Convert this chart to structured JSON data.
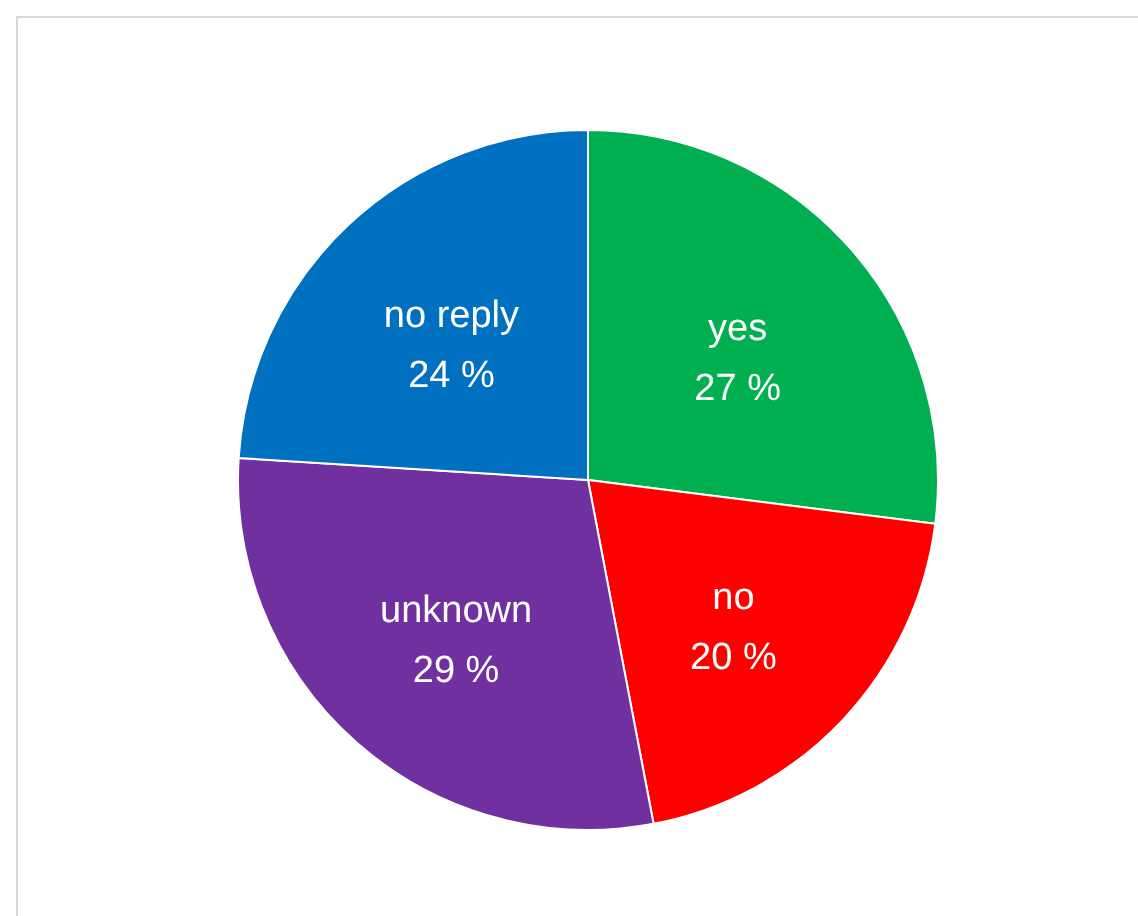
{
  "chart_data": {
    "type": "pie",
    "categories": [
      "yes",
      "no",
      "unknown",
      "no reply"
    ],
    "values": [
      27,
      20,
      29,
      24
    ],
    "colors": [
      "#00b050",
      "#ff0000",
      "#7030a0",
      "#0070c0"
    ],
    "value_labels": [
      "27 %",
      "20 %",
      "29 %",
      "24 %"
    ]
  }
}
